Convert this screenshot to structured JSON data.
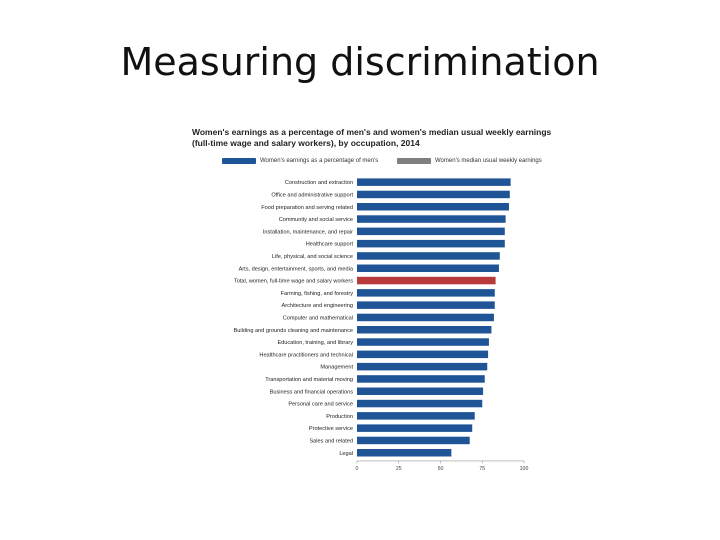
{
  "slide": {
    "title": "Measuring discrimination"
  },
  "chart_data": {
    "type": "bar",
    "orientation": "horizontal",
    "title": "Women's earnings as a percentage of men's and women's median usual weekly earnings (full-time wage and salary workers), by occupation, 2014",
    "legend": [
      {
        "label": "Women's earnings as a percentage of men's",
        "color": "#1f5596"
      },
      {
        "label": "Women's median usual weekly earnings",
        "color": "#808080"
      }
    ],
    "legend_placement": "top",
    "categories": [
      "Construction and extraction",
      "Office and administrative support",
      "Food preparation and serving related",
      "Community and social service",
      "Installation, maintenance, and repair",
      "Healthcare support",
      "Life, physical, and social science",
      "Arts, design, entertainment, sports, and media",
      "Total, women, full-time wage and salary workers",
      "Farming, fishing, and forestry",
      "Architecture and engineering",
      "Computer and mathematical",
      "Building and grounds cleaning and maintenance",
      "Education, training, and library",
      "Healthcare practitioners and technical",
      "Management",
      "Transportation and material moving",
      "Business and financial operations",
      "Personal care and service",
      "Production",
      "Protective service",
      "Sales and related",
      "Legal"
    ],
    "values": [
      92.0,
      91.5,
      91.0,
      89.0,
      88.5,
      88.5,
      85.5,
      85.0,
      83.0,
      82.5,
      82.5,
      82.0,
      80.5,
      79.0,
      78.5,
      78.0,
      76.5,
      75.5,
      75.0,
      70.5,
      69.0,
      67.5,
      56.5
    ],
    "highlight_index": 8,
    "series_colors": {
      "bar": "#1f5596",
      "highlight": "#b83a3a"
    },
    "xlim": [
      0,
      100
    ],
    "xticks": [
      0,
      25,
      50,
      75,
      100
    ],
    "xtick_labels": [
      "0",
      "25",
      "50",
      "75",
      "100"
    ],
    "grid": false
  }
}
